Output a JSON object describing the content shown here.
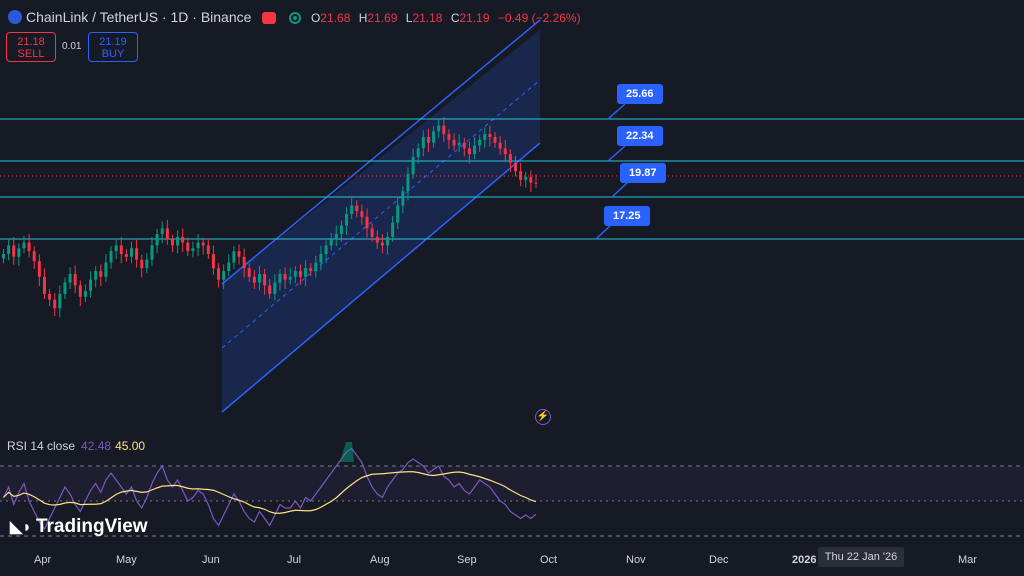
{
  "header": {
    "symbol_title": "ChainLink / TetherUS · 1D · Binance",
    "ohlc": {
      "o_label": "O",
      "o": "21.68",
      "h_label": "H",
      "h": "21.69",
      "l_label": "L",
      "l": "21.18",
      "c_label": "C",
      "c": "21.19",
      "change": "−0.49 (−2.26%)"
    },
    "icons": [
      "chainlink-logo-icon",
      "market-closed-icon",
      "live-status-icon"
    ]
  },
  "trade": {
    "sell_price": "21.18",
    "sell_label": "SELL",
    "spread": "0.01",
    "buy_price": "21.19",
    "buy_label": "BUY"
  },
  "price_levels": [
    {
      "value": "25.66"
    },
    {
      "value": "22.34"
    },
    {
      "value": "19.87"
    },
    {
      "value": "17.25"
    }
  ],
  "rsi": {
    "label": "RSI 14 close",
    "value": "42.48",
    "ma_value": "45.00"
  },
  "watermark": "TradingView",
  "x_axis": {
    "labels": [
      "Apr",
      "May",
      "Jun",
      "Jul",
      "Aug",
      "Sep",
      "Oct",
      "Nov",
      "Dec",
      "2026",
      "Mar"
    ],
    "crosshair_date": "Thu 22 Jan '26"
  },
  "colors": {
    "background": "#161a25",
    "up": "#089981",
    "down": "#f23645",
    "accent": "#2962ff",
    "rsi": "#7e57c2",
    "rsi_ma": "#ffe082",
    "levels": "#26c6da"
  },
  "chart_data": {
    "type": "candlestick",
    "series_note": "",
    "candles_close_approx": [
      16.2,
      16.8,
      16.0,
      16.6,
      17.0,
      16.4,
      15.7,
      14.6,
      13.4,
      13.0,
      12.4,
      13.4,
      14.2,
      14.8,
      14.0,
      13.2,
      13.6,
      14.4,
      15.0,
      14.6,
      15.6,
      16.4,
      16.8,
      16.2,
      16.0,
      16.6,
      15.8,
      15.2,
      15.8,
      16.8,
      17.6,
      18.0,
      17.2,
      16.8,
      17.4,
      17.0,
      16.4,
      16.6,
      17.0,
      16.8,
      16.2,
      15.2,
      14.4,
      15.0,
      15.6,
      16.4,
      16.0,
      15.2,
      14.6,
      14.2,
      14.8,
      14.0,
      13.4,
      14.2,
      14.8,
      14.4,
      14.6,
      15.0,
      14.6,
      15.2,
      15.0,
      15.6,
      16.2,
      16.8,
      17.2,
      17.6,
      18.2,
      19.0,
      19.6,
      19.2,
      18.8,
      18.0,
      17.4,
      17.0,
      16.8,
      17.4,
      18.4,
      19.6,
      20.6,
      21.8,
      23.0,
      23.6,
      24.4,
      24.0,
      24.8,
      25.2,
      24.6,
      24.2,
      23.8,
      24.0,
      23.6,
      23.2,
      23.8,
      24.2,
      24.6,
      24.4,
      24.0,
      23.6,
      23.2,
      22.6,
      22.0,
      21.4,
      21.6,
      21.2,
      21.19
    ],
    "channel": {
      "upper_start": "17.0",
      "upper_end": "28.0",
      "lower_start": "12.3",
      "lower_end": "22.6"
    },
    "rsi_values_approx": [
      52,
      58,
      48,
      55,
      60,
      50,
      44,
      38,
      34,
      40,
      46,
      52,
      58,
      54,
      48,
      44,
      50,
      56,
      60,
      55,
      62,
      66,
      62,
      58,
      54,
      58,
      50,
      46,
      52,
      60,
      66,
      70,
      62,
      58,
      62,
      56,
      50,
      52,
      56,
      54,
      48,
      40,
      36,
      42,
      48,
      54,
      50,
      44,
      40,
      38,
      44,
      40,
      36,
      42,
      48,
      46,
      46,
      50,
      46,
      52,
      50,
      54,
      58,
      62,
      66,
      70,
      74,
      78,
      80,
      76,
      72,
      64,
      58,
      54,
      52,
      58,
      62,
      66,
      68,
      72,
      74,
      72,
      70,
      66,
      68,
      70,
      64,
      62,
      58,
      60,
      56,
      54,
      58,
      62,
      60,
      58,
      54,
      50,
      48,
      44,
      42,
      40,
      42,
      40,
      42.48
    ]
  }
}
